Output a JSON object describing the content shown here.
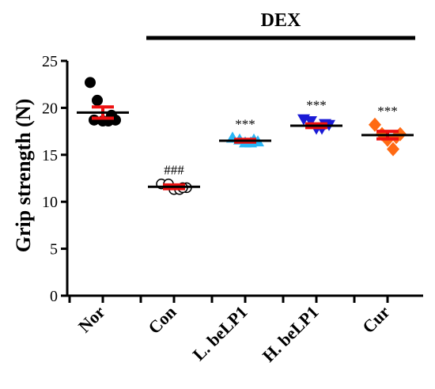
{
  "chart_data": {
    "type": "scatter",
    "ylabel": "Grip strength (N)",
    "xlabel": "",
    "ylim": [
      0,
      25
    ],
    "yticks": [
      0,
      5,
      10,
      15,
      20,
      25
    ],
    "grid": false,
    "treatment_bar": {
      "label": "DEX",
      "from": "Con",
      "to": "Cur"
    },
    "categories": [
      "Nor",
      "Con",
      "L. beLP1",
      "H. beLP1",
      "Cur"
    ],
    "groups": [
      {
        "category": "Nor",
        "marker": "circle-filled",
        "color": "#000000",
        "mean": 19.5,
        "sem": 0.6,
        "points": [
          22.7,
          20.8,
          18.6,
          18.6,
          18.7,
          19.2,
          18.7
        ],
        "annotation": ""
      },
      {
        "category": "Con",
        "marker": "circle-open",
        "color": "#000000",
        "mean": 11.6,
        "sem": 0.2,
        "points": [
          11.9,
          11.9,
          11.3,
          11.3,
          11.5,
          11.5
        ],
        "annotation": "###"
      },
      {
        "category": "L. beLP1",
        "marker": "triangle-up",
        "color": "#29B6F6",
        "mean": 16.5,
        "sem": 0.15,
        "points": [
          16.8,
          16.6,
          16.3,
          16.3,
          16.4,
          16.6
        ],
        "annotation": "***"
      },
      {
        "category": "H. beLP1",
        "marker": "triangle-down",
        "color": "#1a1ad6",
        "mean": 18.1,
        "sem": 0.2,
        "points": [
          18.8,
          18.6,
          17.8,
          17.8,
          18.2,
          18.3
        ],
        "annotation": "***"
      },
      {
        "category": "Cur",
        "marker": "diamond",
        "color": "#FF6A13",
        "mean": 17.1,
        "sem": 0.4,
        "points": [
          18.2,
          17.2,
          16.6,
          15.6,
          17.2,
          16.9
        ],
        "annotation": "***"
      }
    ],
    "mean_line_color": "#000000",
    "error_bar_color": "#EE1111"
  }
}
